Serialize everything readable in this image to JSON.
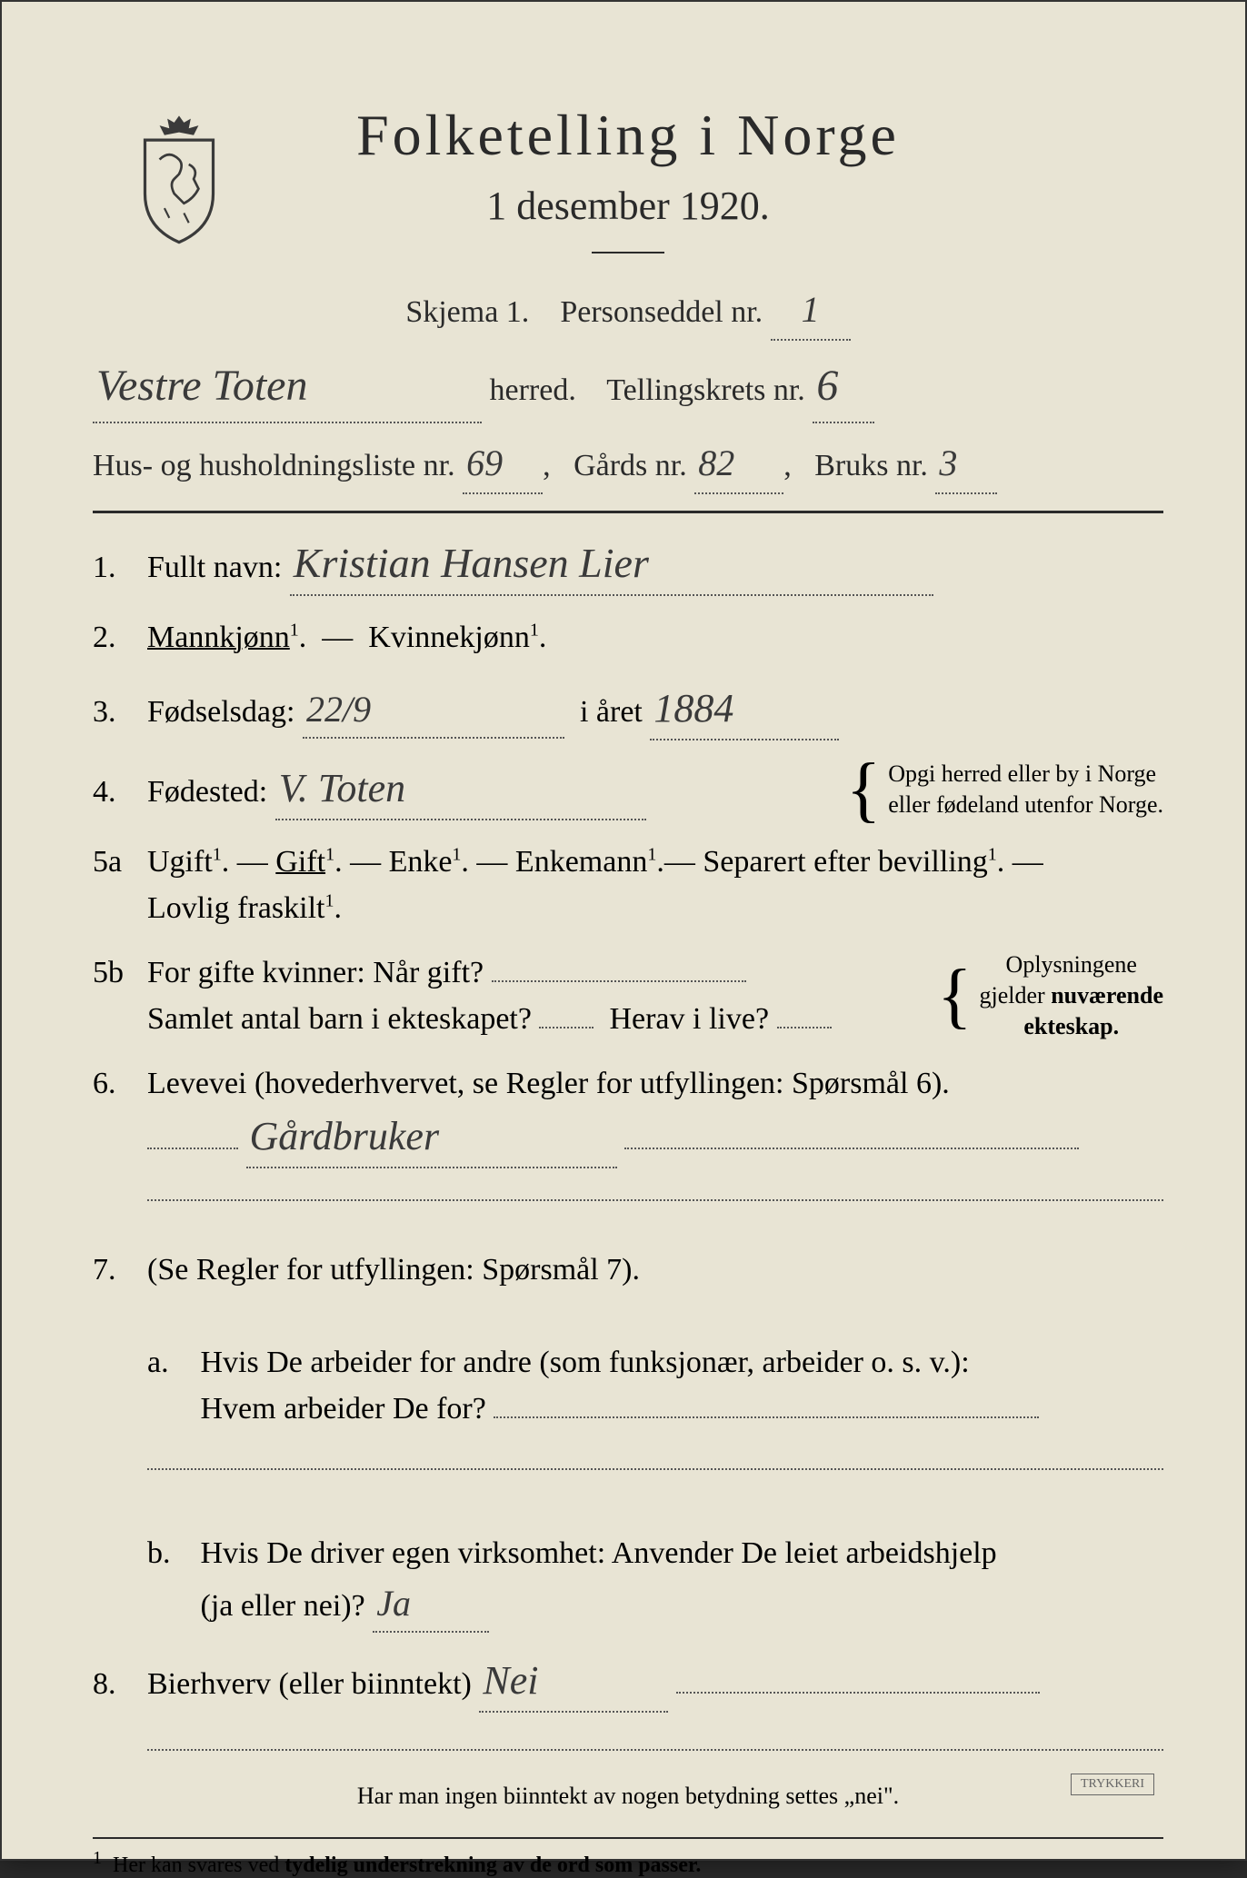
{
  "header": {
    "title": "Folketelling i Norge",
    "subtitle": "1 desember 1920."
  },
  "form_meta": {
    "skjema_label": "Skjema 1.",
    "personseddel_label": "Personseddel nr.",
    "personseddel_nr": "1",
    "herred_value": "Vestre Toten",
    "herred_label": "herred.",
    "tellingskrets_label": "Tellingskrets nr.",
    "tellingskrets_nr": "6",
    "husliste_label": "Hus- og husholdningsliste nr.",
    "husliste_nr": "69",
    "gards_label": "Gårds nr.",
    "gards_nr": "82",
    "bruks_label": "Bruks nr.",
    "bruks_nr": "3"
  },
  "q1": {
    "num": "1.",
    "label": "Fullt navn:",
    "value": "Kristian Hansen Lier"
  },
  "q2": {
    "num": "2.",
    "mann": "Mannkjønn",
    "kvinne": "Kvinnekjønn",
    "sup": "1"
  },
  "q3": {
    "num": "3.",
    "label": "Fødselsdag:",
    "day": "22/9",
    "year_label": "i året",
    "year": "1884"
  },
  "q4": {
    "num": "4.",
    "label": "Fødested:",
    "value": "V. Toten",
    "note_line1": "Opgi herred eller by i Norge",
    "note_line2": "eller fødeland utenfor Norge."
  },
  "q5a": {
    "num": "5a",
    "ugift": "Ugift",
    "gift": "Gift",
    "enke": "Enke",
    "enkemann": "Enkemann",
    "separert": "Separert efter bevilling",
    "fraskilt": "Lovlig fraskilt",
    "sup": "1"
  },
  "q5b": {
    "num": "5b",
    "line1_label": "For gifte kvinner:  Når gift?",
    "line2_label1": "Samlet antal barn i ekteskapet?",
    "line2_label2": "Herav i live?",
    "note_line1": "Oplysningene",
    "note_line2": "gjelder nuværende",
    "note_line3": "ekteskap."
  },
  "q6": {
    "num": "6.",
    "label": "Levevei (hovederhvervet, se Regler for utfyllingen:  Spørsmål 6).",
    "value": "Gårdbruker"
  },
  "q7": {
    "num": "7.",
    "label": "(Se Regler for utfyllingen:  Spørsmål 7).",
    "a_letter": "a.",
    "a_line1": "Hvis De arbeider for andre (som funksjonær, arbeider o. s. v.):",
    "a_line2": "Hvem arbeider De for?",
    "b_letter": "b.",
    "b_line1": "Hvis De driver egen virksomhet:  Anvender De leiet arbeidshjelp",
    "b_line2_label": "(ja eller nei)?",
    "b_value": "Ja"
  },
  "q8": {
    "num": "8.",
    "label": "Bierhverv (eller biinntekt)",
    "value": "Nei"
  },
  "bottom_note": "Har man ingen biinntekt av nogen betydning settes „nei\".",
  "footnote": "Her kan svares ved tydelig understrekning av de ord som passer.",
  "footnote_num": "1"
}
